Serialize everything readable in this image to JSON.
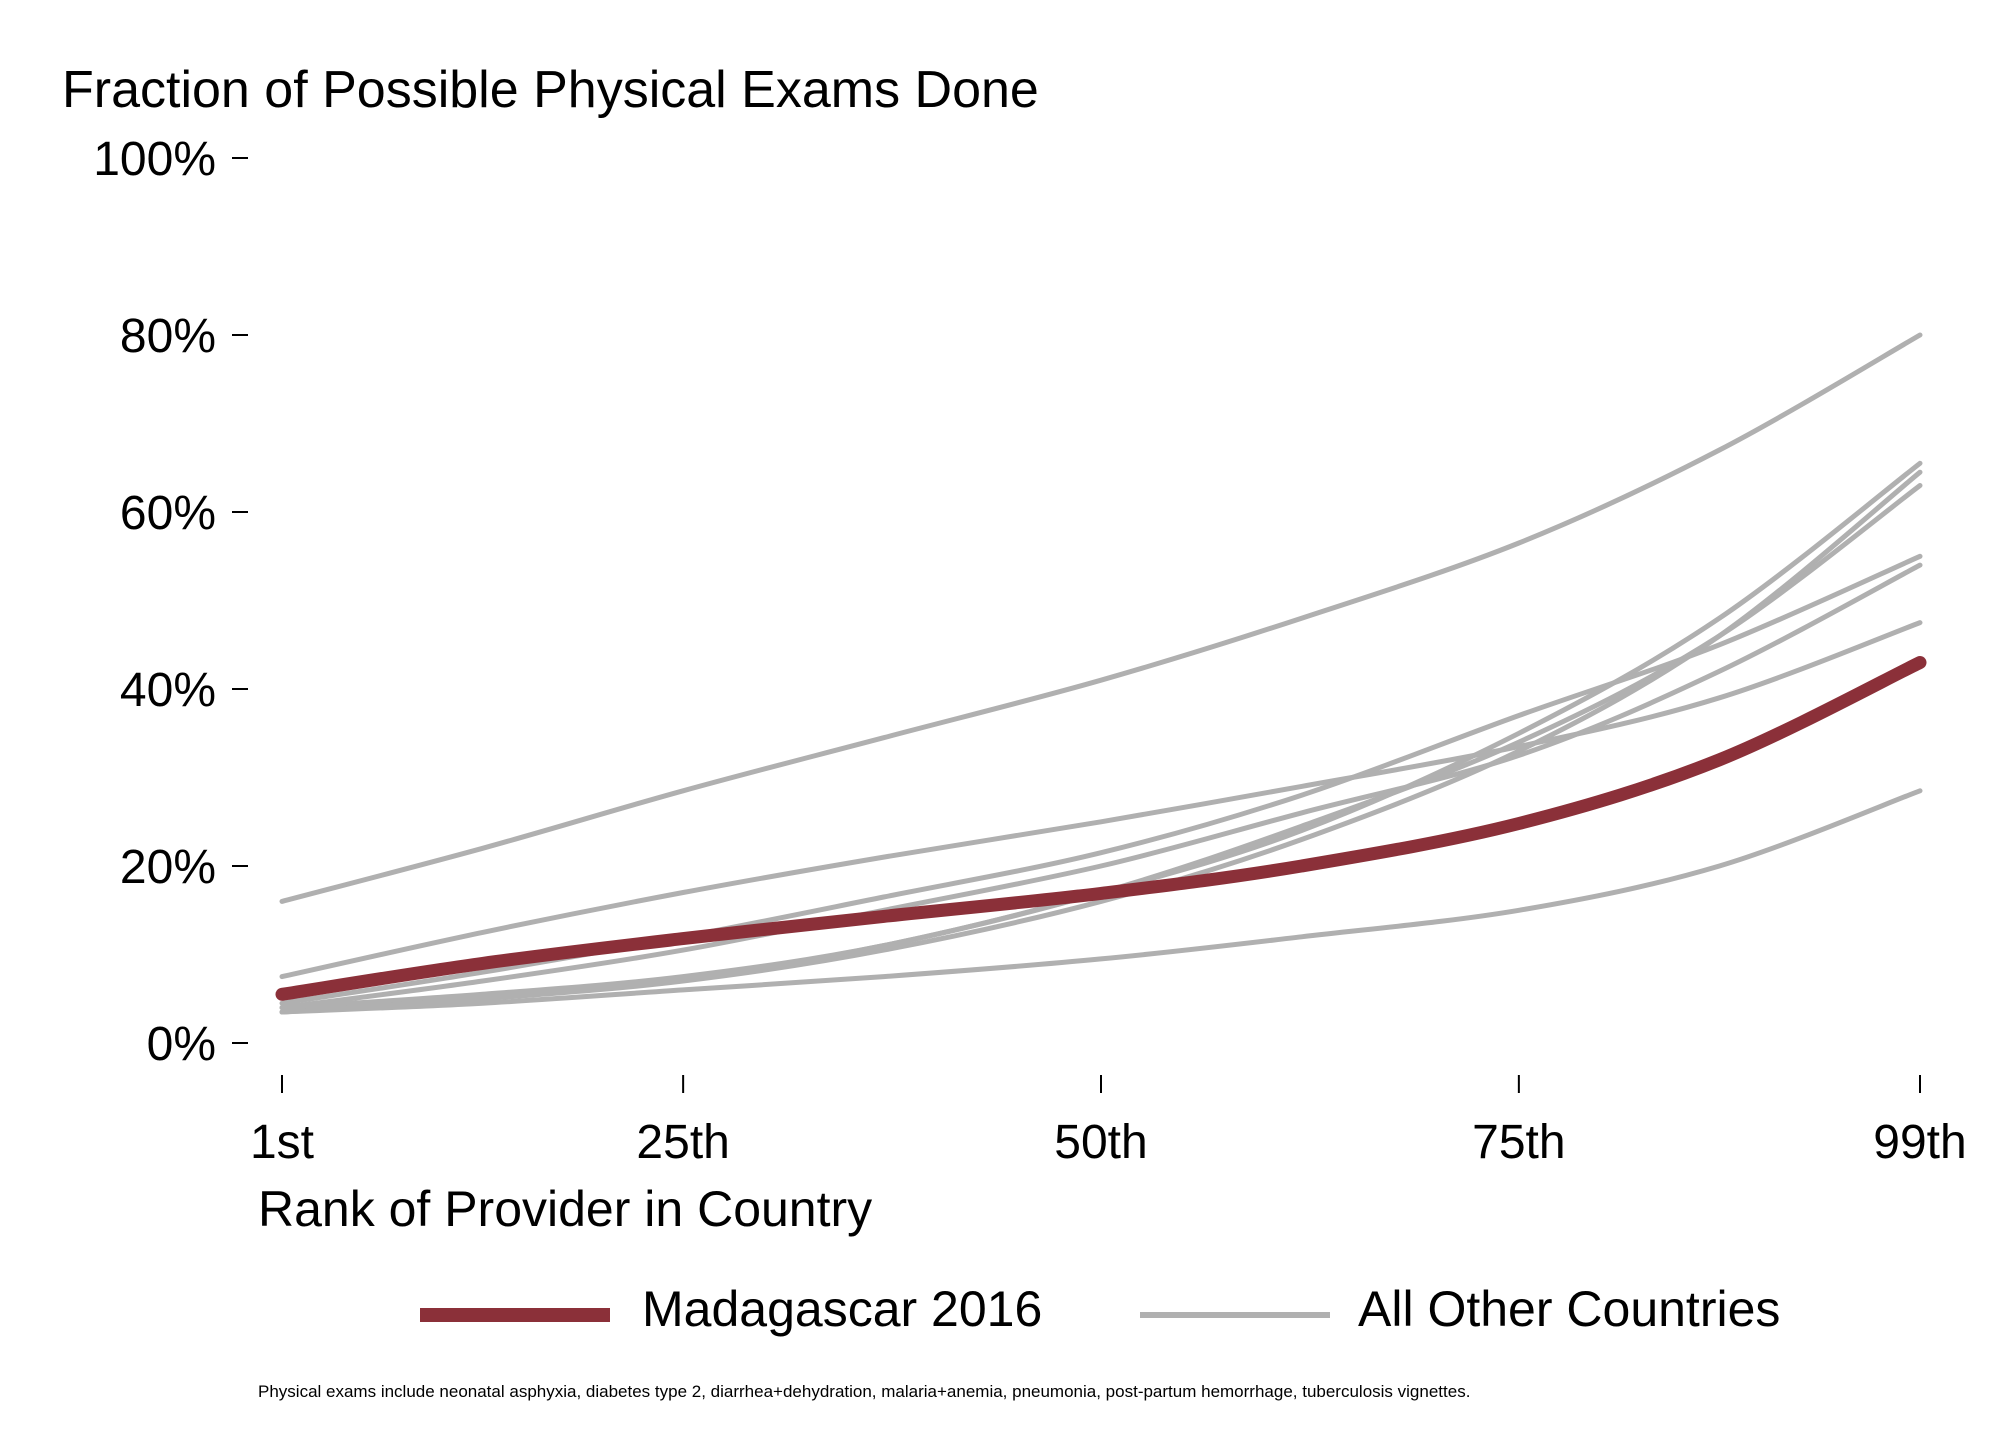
{
  "chart_data": {
    "type": "line",
    "title": "Fraction of Possible Physical Exams Done",
    "xlabel": "Rank of Provider in Country",
    "ylabel": "",
    "x_ticks": [
      1,
      25,
      50,
      75,
      99
    ],
    "x_tick_labels": [
      "1st",
      "25th",
      "50th",
      "75th",
      "99th"
    ],
    "y_ticks": [
      0,
      20,
      40,
      60,
      80,
      100
    ],
    "y_tick_labels": [
      "0%",
      "20%",
      "40%",
      "60%",
      "80%",
      "100%"
    ],
    "xlim": [
      1,
      99
    ],
    "ylim": [
      0,
      100
    ],
    "grid": false,
    "legend_position": "bottom",
    "x": [
      1,
      13,
      25,
      37,
      50,
      62,
      75,
      87,
      99
    ],
    "highlight_series": {
      "name": "Madagascar 2016",
      "color": "#8b3039",
      "values": [
        5.5,
        9,
        11.8,
        14.3,
        16.9,
        20,
        24.8,
        32,
        43
      ]
    },
    "other_series": {
      "name": "All Other Countries",
      "color": "#b0b0b0",
      "lines": [
        {
          "values": [
            16,
            22,
            28.5,
            34.5,
            41,
            48,
            56.5,
            67,
            80
          ]
        },
        {
          "values": [
            4,
            5.5,
            7.5,
            11,
            17,
            24,
            35,
            48,
            65.5
          ]
        },
        {
          "values": [
            3.5,
            5,
            7,
            10.5,
            16,
            23,
            33,
            46,
            64.5
          ]
        },
        {
          "values": [
            3.5,
            5,
            7.2,
            11,
            17,
            24.5,
            34,
            46,
            63
          ]
        },
        {
          "values": [
            4.5,
            8,
            12,
            16.5,
            21.5,
            28,
            37,
            45,
            55
          ]
        },
        {
          "values": [
            4,
            7,
            10.5,
            15,
            20,
            26,
            32.5,
            42,
            54
          ]
        },
        {
          "values": [
            7.5,
            12.5,
            17,
            21,
            25,
            29,
            33.5,
            39,
            47.5
          ]
        },
        {
          "values": [
            3.5,
            4.5,
            6,
            7.5,
            9.5,
            12,
            15,
            20,
            28.5
          ]
        }
      ]
    },
    "note": "Physical exams include neonatal asphyxia, diabetes type 2, diarrhea+dehydration, malaria+anemia, pneumonia, post-partum hemorrhage, tuberculosis vignettes."
  }
}
